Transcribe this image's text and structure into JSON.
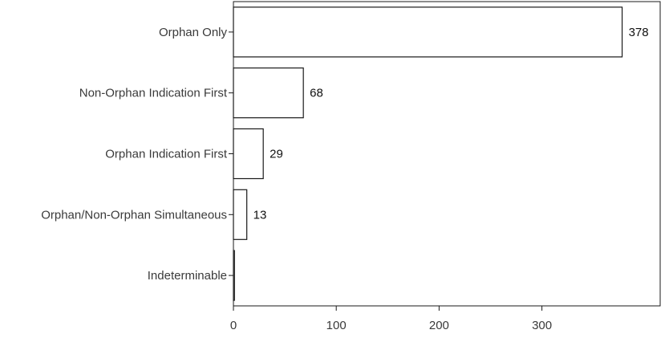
{
  "chart_data": {
    "type": "bar",
    "orientation": "horizontal",
    "categories": [
      "Orphan Only",
      "Non-Orphan Indication First",
      "Orphan Indication First",
      "Orphan/Non-Orphan Simultaneous",
      "Indeterminable"
    ],
    "values": [
      378,
      68,
      29,
      13,
      1
    ],
    "value_labels": [
      "378",
      "68",
      "29",
      "13",
      ""
    ],
    "x_ticks": [
      0,
      100,
      200,
      300
    ],
    "xlim": [
      0,
      415
    ],
    "title": "",
    "xlabel": "",
    "ylabel": "",
    "grid": false,
    "legend": "none",
    "bar_fill": "#ffffff",
    "bar_stroke": "#1a1a1a"
  }
}
